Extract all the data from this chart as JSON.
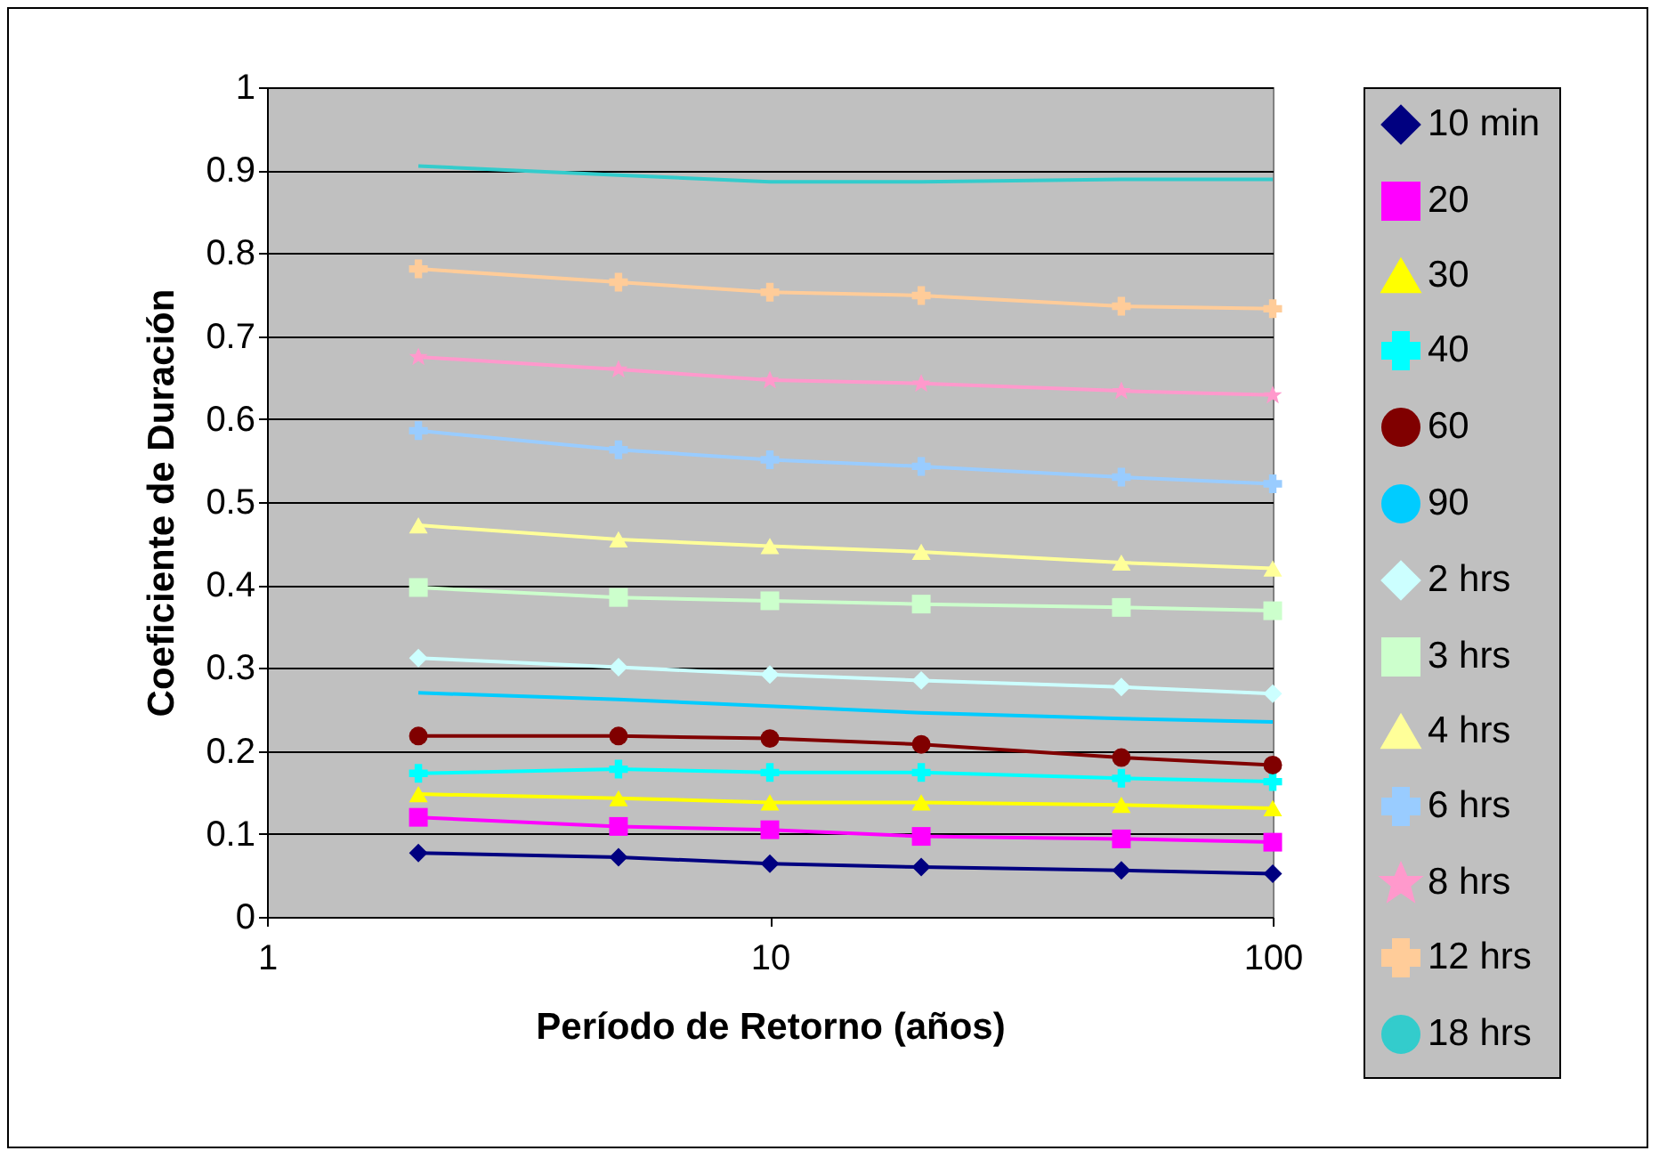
{
  "chart_data": {
    "type": "line",
    "xlabel": "Período de Retorno (años)",
    "ylabel": "Coeficiente de Duración",
    "x": [
      2,
      5,
      10,
      20,
      50,
      100
    ],
    "log": "x",
    "xlim": [
      1,
      100
    ],
    "xticks": [
      1,
      10,
      100
    ],
    "ylim": [
      0,
      1
    ],
    "yticks": [
      0,
      0.1,
      0.2,
      0.3,
      0.4,
      0.5,
      0.6,
      0.7,
      0.8,
      0.9,
      1
    ],
    "grid": "y",
    "legend": "right",
    "line_style": "solid",
    "series": [
      {
        "name": "10 min",
        "color": "#000080",
        "marker": "diamond",
        "values": [
          0.077,
          0.072,
          0.064,
          0.06,
          0.056,
          0.052
        ]
      },
      {
        "name": "20",
        "color": "#ff00ff",
        "marker": "square",
        "values": [
          0.12,
          0.109,
          0.105,
          0.097,
          0.094,
          0.09
        ]
      },
      {
        "name": "30",
        "color": "#ffff00",
        "marker": "triangle",
        "values": [
          0.148,
          0.143,
          0.138,
          0.138,
          0.135,
          0.131
        ]
      },
      {
        "name": "40",
        "color": "#00ffff",
        "marker": "cross",
        "values": [
          0.173,
          0.178,
          0.174,
          0.174,
          0.167,
          0.163
        ]
      },
      {
        "name": "60",
        "color": "#800000",
        "marker": "circle",
        "values": [
          0.218,
          0.218,
          0.215,
          0.208,
          0.192,
          0.183
        ]
      },
      {
        "name": "90",
        "color": "#00ccff",
        "marker": "none",
        "values": [
          0.27,
          0.262,
          0.254,
          0.246,
          0.239,
          0.235
        ]
      },
      {
        "name": "2 hrs",
        "color": "#ccffff",
        "marker": "diamond",
        "values": [
          0.312,
          0.301,
          0.292,
          0.285,
          0.277,
          0.269
        ]
      },
      {
        "name": "3 hrs",
        "color": "#ccffcc",
        "marker": "square",
        "values": [
          0.397,
          0.385,
          0.381,
          0.377,
          0.373,
          0.369
        ]
      },
      {
        "name": "4 hrs",
        "color": "#ffff99",
        "marker": "triangle",
        "values": [
          0.472,
          0.455,
          0.447,
          0.44,
          0.427,
          0.42
        ]
      },
      {
        "name": "6 hrs",
        "color": "#99ccff",
        "marker": "cross",
        "values": [
          0.586,
          0.563,
          0.551,
          0.543,
          0.53,
          0.522
        ]
      },
      {
        "name": "8 hrs",
        "color": "#ff99cc",
        "marker": "star",
        "values": [
          0.675,
          0.66,
          0.647,
          0.643,
          0.634,
          0.629
        ]
      },
      {
        "name": "12 hrs",
        "color": "#ffcc99",
        "marker": "cross",
        "values": [
          0.781,
          0.765,
          0.753,
          0.749,
          0.736,
          0.733
        ]
      },
      {
        "name": "18 hrs",
        "color": "#33cccc",
        "marker": "none",
        "values": [
          0.905,
          0.894,
          0.886,
          0.886,
          0.889,
          0.889
        ]
      }
    ]
  }
}
